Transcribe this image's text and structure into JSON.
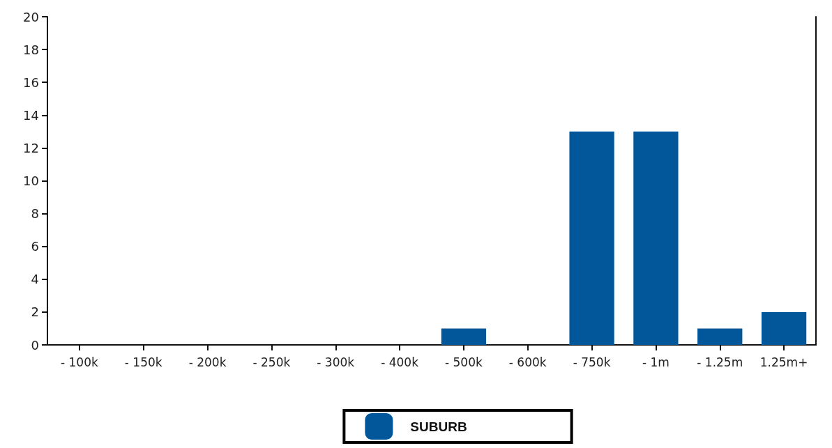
{
  "chart_data": {
    "type": "bar",
    "categories": [
      "- 100k",
      "- 150k",
      "- 200k",
      "- 250k",
      "- 300k",
      "- 400k",
      "- 500k",
      "- 600k",
      "- 750k",
      "- 1m",
      "- 1.25m",
      "1.25m+"
    ],
    "series": [
      {
        "name": "SUBURB",
        "color": "#02569a",
        "values": [
          0,
          0,
          0,
          0,
          0,
          0,
          1,
          0,
          13,
          13,
          1,
          2
        ]
      }
    ],
    "ylim": [
      0,
      20
    ],
    "yticks": [
      0,
      2,
      4,
      6,
      8,
      10,
      12,
      14,
      16,
      18,
      20
    ],
    "grid": false,
    "legend": "bottom"
  }
}
